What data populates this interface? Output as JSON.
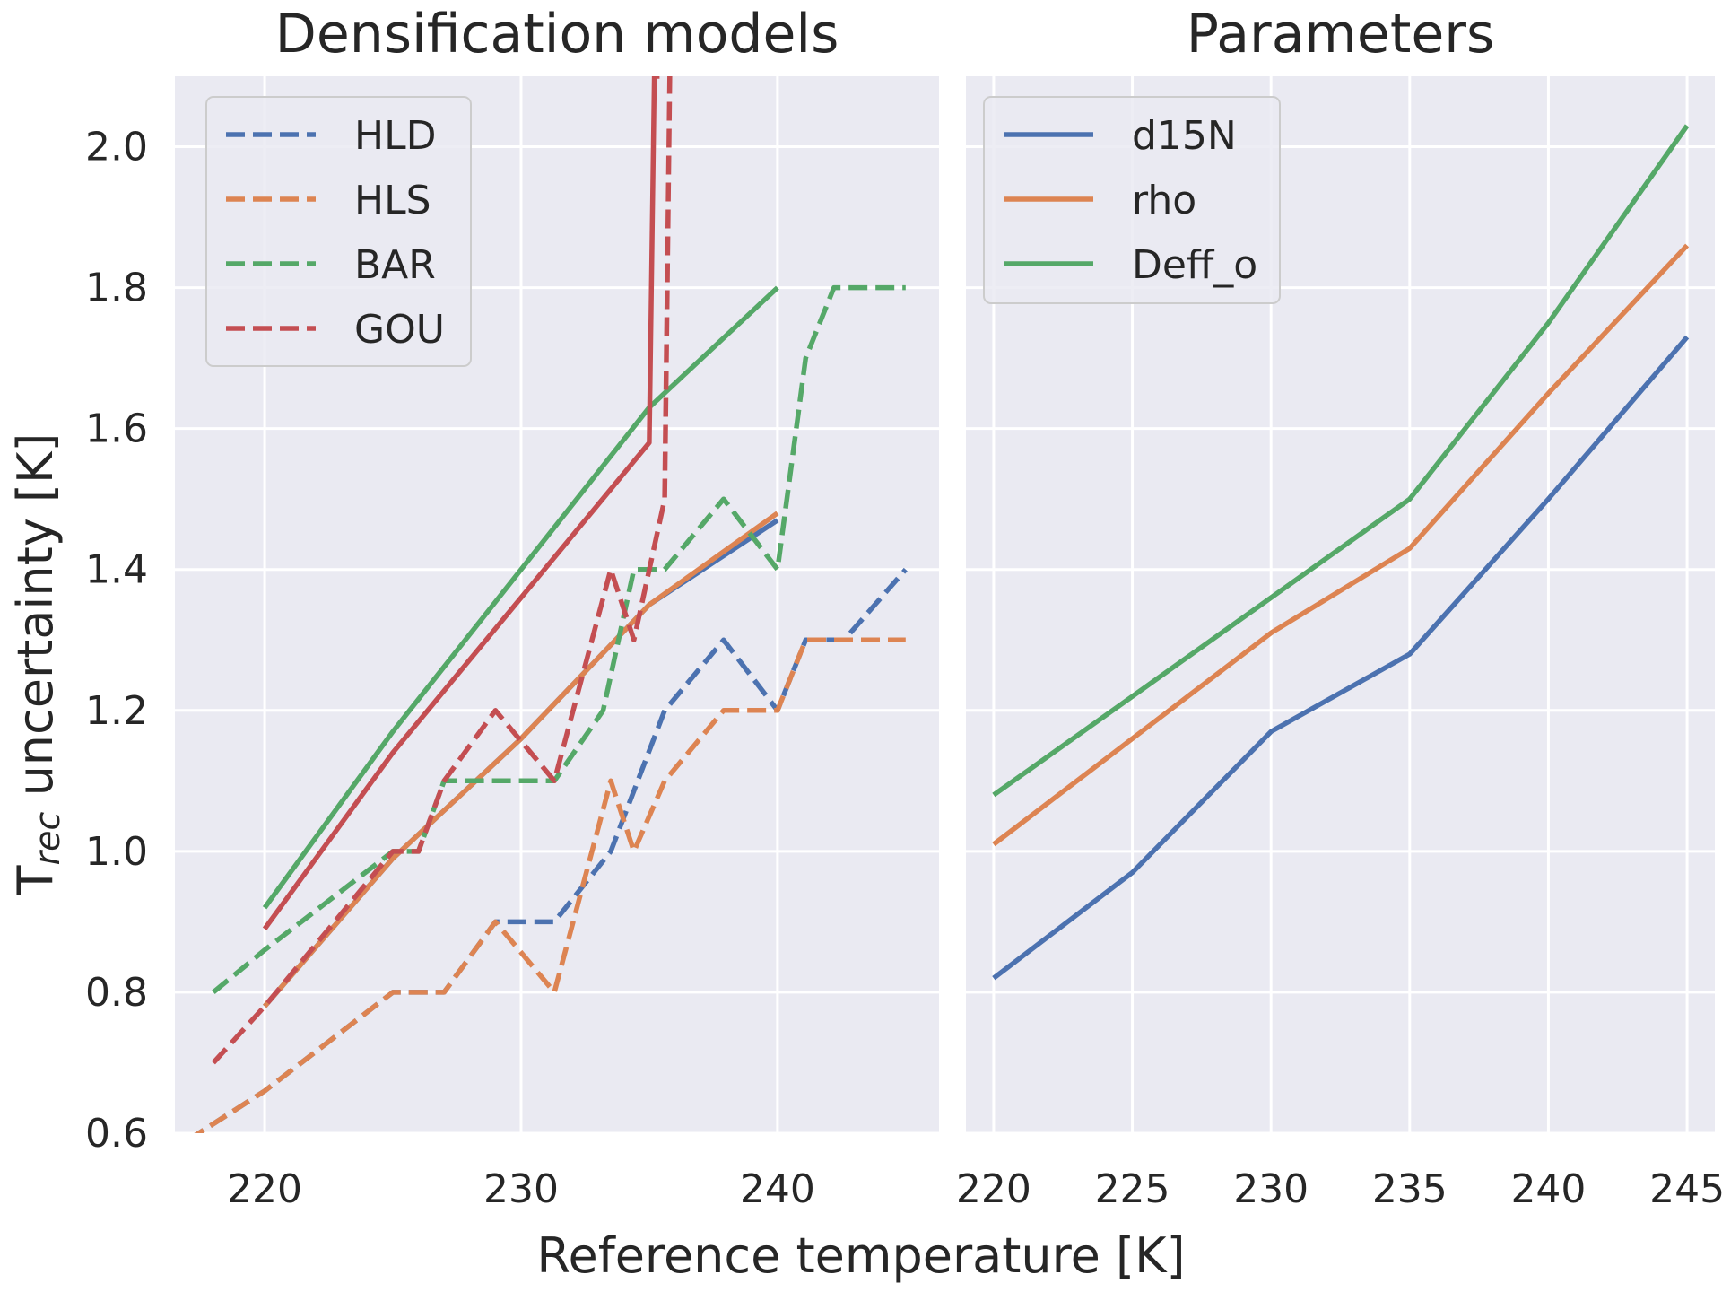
{
  "figure": {
    "xlabel": "Reference temperature [K]",
    "ylabel_main": "T",
    "ylabel_sub": "rec",
    "ylabel_rest": " uncertainty [K]"
  },
  "colors": {
    "background": "#eaeaf2",
    "grid": "#ffffff",
    "blue": "#4c72b0",
    "orange": "#dd8452",
    "green": "#55a868",
    "red": "#c44e52"
  },
  "chart_data": [
    {
      "type": "line",
      "title": "Densification models",
      "xlabel": "Reference temperature [K]",
      "ylabel": "T_rec uncertainty [K]",
      "xlim": [
        216.5,
        246.3
      ],
      "ylim": [
        0.6,
        2.1
      ],
      "xticks": [
        220,
        230,
        240
      ],
      "xtick_labels": [
        "220",
        "230",
        "240"
      ],
      "yticks": [
        0.6,
        0.8,
        1.0,
        1.2,
        1.4,
        1.6,
        1.8,
        2.0
      ],
      "ytick_labels": [
        "0.6",
        "0.8",
        "1.0",
        "1.2",
        "1.4",
        "1.6",
        "1.8",
        "2.0"
      ],
      "legend_position": "upper-left",
      "legend": [
        {
          "label": "HLD",
          "color": "#4c72b0",
          "style": "dashed"
        },
        {
          "label": "HLS",
          "color": "#dd8452",
          "style": "dashed"
        },
        {
          "label": "BAR",
          "color": "#55a868",
          "style": "dashed"
        },
        {
          "label": "GOU",
          "color": "#c44e52",
          "style": "dashed"
        }
      ],
      "series": [
        {
          "style": "solid",
          "color": "#55a868",
          "x": [
            220,
            225,
            230,
            235,
            240
          ],
          "y": [
            0.92,
            1.17,
            1.4,
            1.63,
            1.8
          ]
        },
        {
          "style": "solid",
          "color": "#c44e52",
          "x": [
            220,
            225,
            230,
            235,
            235.2,
            235.4
          ],
          "y": [
            0.89,
            1.14,
            1.36,
            1.58,
            2.1,
            2.1
          ]
        },
        {
          "style": "solid",
          "color": "#4c72b0",
          "x": [
            220,
            225,
            230,
            235,
            240
          ],
          "y": [
            0.78,
            0.99,
            1.16,
            1.35,
            1.47
          ]
        },
        {
          "style": "solid",
          "color": "#dd8452",
          "x": [
            220,
            225,
            230,
            235,
            240
          ],
          "y": [
            0.78,
            0.99,
            1.16,
            1.35,
            1.48
          ]
        },
        {
          "name": "HLD",
          "style": "dashed",
          "color": "#4c72b0",
          "x": [
            217,
            220,
            225,
            227,
            229,
            231.3,
            233.5,
            235.6,
            237.9,
            240,
            241.1,
            242.6,
            245
          ],
          "y": [
            0.59,
            0.66,
            0.8,
            0.8,
            0.9,
            0.9,
            1.0,
            1.2,
            1.3,
            1.2,
            1.3,
            1.3,
            1.4
          ]
        },
        {
          "name": "HLS",
          "style": "dashed",
          "color": "#dd8452",
          "x": [
            217,
            220,
            225,
            227,
            229,
            231.3,
            233.5,
            234.4,
            235.6,
            237.9,
            240,
            241.1,
            242.6,
            245
          ],
          "y": [
            0.59,
            0.66,
            0.8,
            0.8,
            0.9,
            0.8,
            1.1,
            1.0,
            1.1,
            1.2,
            1.2,
            1.3,
            1.3,
            1.3
          ]
        },
        {
          "name": "BAR",
          "style": "dashed",
          "color": "#55a868",
          "x": [
            218,
            220,
            225,
            226,
            227,
            229,
            231.3,
            233.2,
            234.4,
            235.6,
            237.9,
            240,
            241.1,
            242.2,
            245
          ],
          "y": [
            0.8,
            0.86,
            1.0,
            1.0,
            1.1,
            1.1,
            1.1,
            1.2,
            1.4,
            1.4,
            1.5,
            1.4,
            1.7,
            1.8,
            1.8
          ]
        },
        {
          "name": "GOU",
          "style": "dashed",
          "color": "#c44e52",
          "x": [
            218,
            220,
            225,
            226,
            227,
            229,
            231.3,
            233.5,
            234.4,
            235.6,
            235.8,
            236
          ],
          "y": [
            0.7,
            0.78,
            1.0,
            1.0,
            1.1,
            1.2,
            1.1,
            1.4,
            1.3,
            1.5,
            2.1,
            2.1
          ]
        }
      ]
    },
    {
      "type": "line",
      "title": "Parameters",
      "xlim": [
        219,
        246
      ],
      "ylim": [
        0.6,
        2.1
      ],
      "xticks": [
        220,
        225,
        230,
        235,
        240,
        245
      ],
      "xtick_labels": [
        "220",
        "225",
        "230",
        "235",
        "240",
        "245"
      ],
      "yticks": [
        0.6,
        0.8,
        1.0,
        1.2,
        1.4,
        1.6,
        1.8,
        2.0
      ],
      "legend_position": "upper-left",
      "series": [
        {
          "name": "d15N",
          "style": "solid",
          "color": "#4c72b0",
          "x": [
            220,
            225,
            230,
            235,
            240,
            245
          ],
          "y": [
            0.82,
            0.97,
            1.17,
            1.28,
            1.5,
            1.73
          ]
        },
        {
          "name": "rho",
          "style": "solid",
          "color": "#dd8452",
          "x": [
            220,
            225,
            230,
            235,
            240,
            245
          ],
          "y": [
            1.01,
            1.16,
            1.31,
            1.43,
            1.65,
            1.86
          ]
        },
        {
          "name": "Deff_o",
          "style": "solid",
          "color": "#55a868",
          "x": [
            220,
            225,
            230,
            235,
            240,
            245
          ],
          "y": [
            1.08,
            1.22,
            1.36,
            1.5,
            1.75,
            2.03
          ]
        }
      ]
    }
  ]
}
